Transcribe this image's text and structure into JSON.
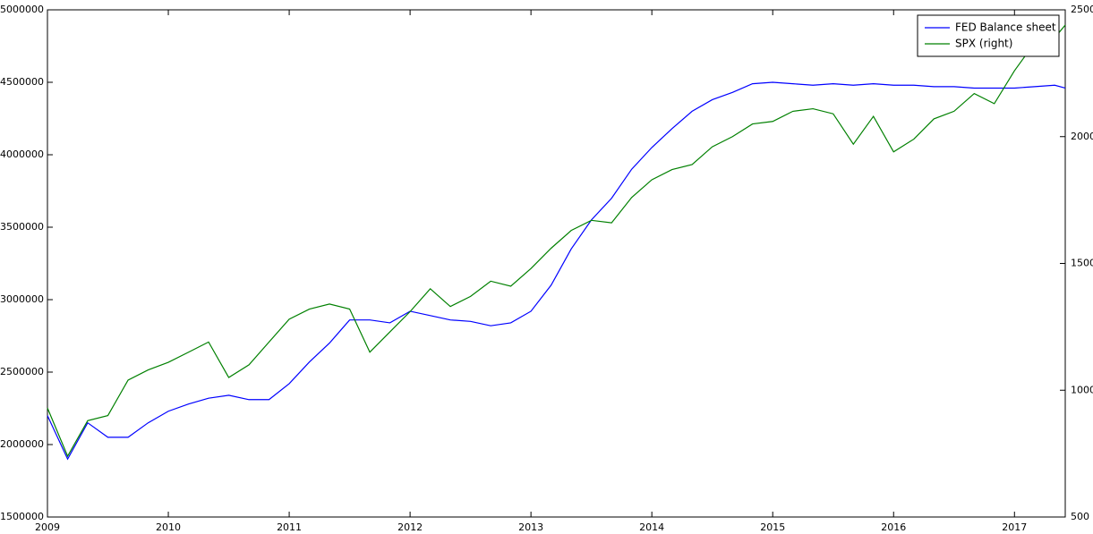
{
  "chart_data": {
    "type": "line",
    "x": [
      2009,
      2009.167,
      2009.333,
      2009.5,
      2009.667,
      2009.833,
      2010,
      2010.167,
      2010.333,
      2010.5,
      2010.667,
      2010.833,
      2011,
      2011.167,
      2011.333,
      2011.5,
      2011.667,
      2011.833,
      2012,
      2012.167,
      2012.333,
      2012.5,
      2012.667,
      2012.833,
      2013,
      2013.167,
      2013.333,
      2013.5,
      2013.667,
      2013.833,
      2014,
      2014.167,
      2014.333,
      2014.5,
      2014.667,
      2014.833,
      2015,
      2015.167,
      2015.333,
      2015.5,
      2015.667,
      2015.833,
      2016,
      2016.167,
      2016.333,
      2016.5,
      2016.667,
      2016.833,
      2017,
      2017.167,
      2017.333,
      2017.42
    ],
    "series": [
      {
        "name": "FED Balance sheet",
        "color": "#0000ff",
        "axis": "y",
        "values": [
          2200000,
          1900000,
          2150000,
          2050000,
          2050000,
          2150000,
          2230000,
          2280000,
          2320000,
          2340000,
          2310000,
          2310000,
          2420000,
          2570000,
          2700000,
          2860000,
          2860000,
          2840000,
          2920000,
          2890000,
          2860000,
          2850000,
          2820000,
          2840000,
          2920000,
          3100000,
          3350000,
          3550000,
          3700000,
          3900000,
          4050000,
          4180000,
          4300000,
          4380000,
          4430000,
          4490000,
          4500000,
          4490000,
          4480000,
          4490000,
          4480000,
          4490000,
          4480000,
          4480000,
          4470000,
          4470000,
          4460000,
          4460000,
          4460000,
          4470000,
          4480000,
          4460000
        ]
      },
      {
        "name": "SPX (right)",
        "color": "#008000",
        "axis": "y2",
        "values": [
          930,
          740,
          880,
          900,
          1040,
          1080,
          1110,
          1150,
          1190,
          1050,
          1100,
          1190,
          1280,
          1320,
          1340,
          1320,
          1150,
          1230,
          1310,
          1400,
          1330,
          1370,
          1430,
          1410,
          1480,
          1560,
          1630,
          1670,
          1660,
          1760,
          1830,
          1870,
          1890,
          1960,
          2000,
          2050,
          2060,
          2100,
          2110,
          2090,
          1970,
          2080,
          1940,
          1990,
          2070,
          2100,
          2170,
          2130,
          2260,
          2370,
          2390,
          2440
        ]
      }
    ],
    "xlim": [
      2009,
      2017.42
    ],
    "xticks": [
      2009,
      2010,
      2011,
      2012,
      2013,
      2014,
      2015,
      2016,
      2017
    ],
    "ylim": [
      1500000,
      5000000
    ],
    "yticks": [
      1500000,
      2000000,
      2500000,
      3000000,
      3500000,
      4000000,
      4500000,
      5000000
    ],
    "y2lim": [
      500,
      2500
    ],
    "y2ticks": [
      500,
      1000,
      1500,
      2000,
      2500
    ],
    "legend": "upper right"
  }
}
